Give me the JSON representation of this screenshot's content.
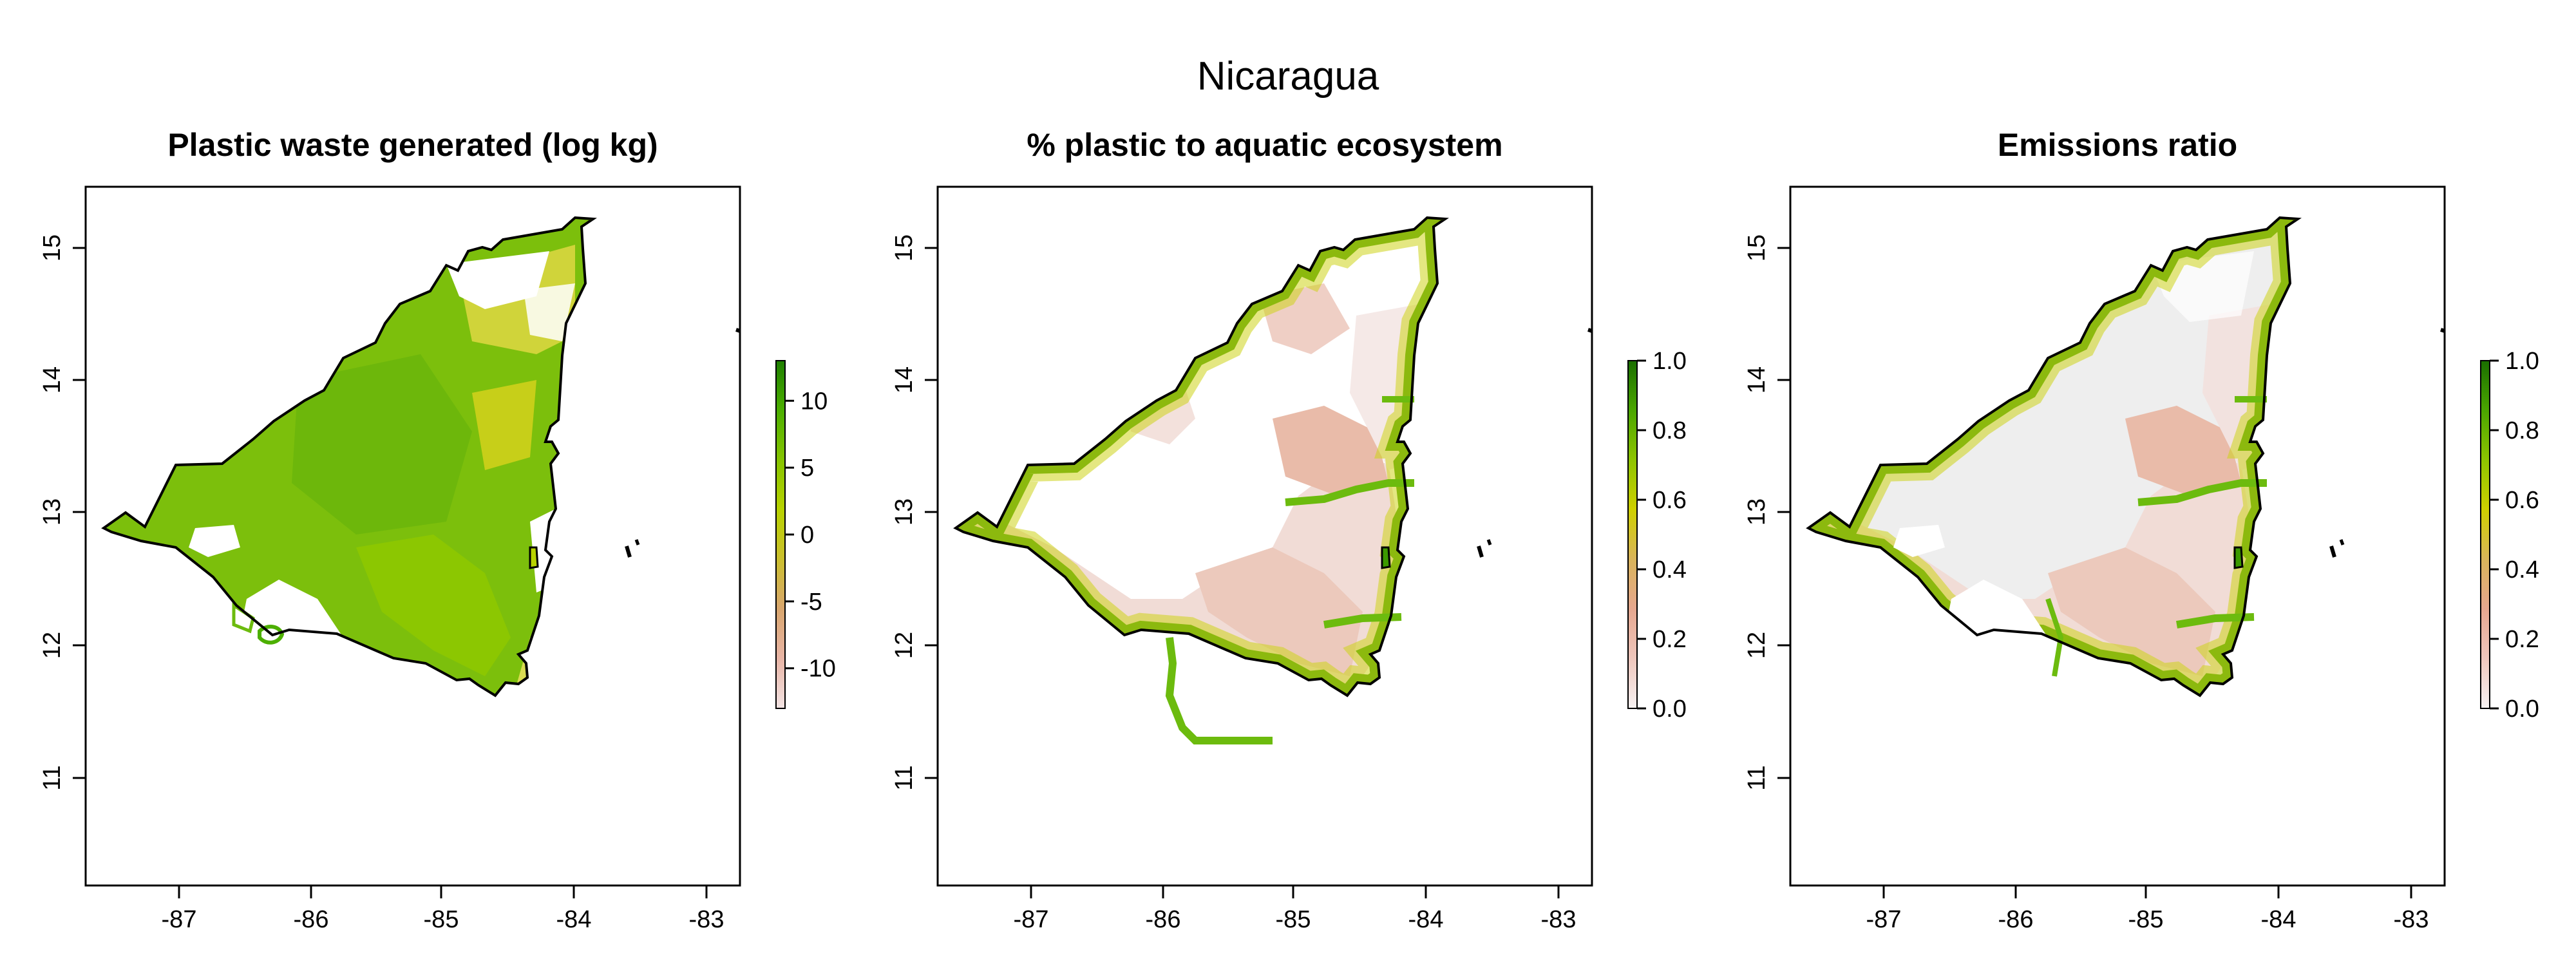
{
  "page": {
    "title": "Nicaragua"
  },
  "panels": [
    {
      "title": "Plastic waste generated (log kg)",
      "x_ticks": [
        "-87",
        "-86",
        "-85",
        "-84",
        "-83"
      ],
      "y_ticks": [
        "15",
        "14",
        "13",
        "12",
        "11"
      ],
      "legend": {
        "range": [
          -13,
          13
        ],
        "ticks": [
          {
            "value": 10,
            "label": "10"
          },
          {
            "value": 5,
            "label": "5"
          },
          {
            "value": 0,
            "label": "0"
          },
          {
            "value": -5,
            "label": "-5"
          },
          {
            "value": -10,
            "label": "-10"
          }
        ],
        "colors": [
          "#f3e4e4",
          "#e8b5a6",
          "#d9a66e",
          "#cbbf2e",
          "#b8d200",
          "#86c400",
          "#4caf00",
          "#1e7f00"
        ]
      }
    },
    {
      "title": "% plastic to aquatic ecosystem",
      "x_ticks": [
        "-87",
        "-86",
        "-85",
        "-84",
        "-83"
      ],
      "y_ticks": [
        "15",
        "14",
        "13",
        "12",
        "11"
      ],
      "legend": {
        "range": [
          0,
          1
        ],
        "ticks": [
          {
            "value": 1.0,
            "label": "1.0"
          },
          {
            "value": 0.8,
            "label": "0.8"
          },
          {
            "value": 0.6,
            "label": "0.6"
          },
          {
            "value": 0.4,
            "label": "0.4"
          },
          {
            "value": 0.2,
            "label": "0.2"
          },
          {
            "value": 0.0,
            "label": "0.0"
          }
        ],
        "colors": [
          "#f7f2f2",
          "#efc7bd",
          "#e6a78f",
          "#d9b45a",
          "#cfd000",
          "#8ec400",
          "#4ba600",
          "#1a6e00"
        ]
      }
    },
    {
      "title": "Emissions ratio",
      "x_ticks": [
        "-87",
        "-86",
        "-85",
        "-84",
        "-83"
      ],
      "y_ticks": [
        "15",
        "14",
        "13",
        "12",
        "11"
      ],
      "legend": {
        "range": [
          0,
          1
        ],
        "ticks": [
          {
            "value": 1.0,
            "label": "1.0"
          },
          {
            "value": 0.8,
            "label": "0.8"
          },
          {
            "value": 0.6,
            "label": "0.6"
          },
          {
            "value": 0.4,
            "label": "0.4"
          },
          {
            "value": 0.2,
            "label": "0.2"
          },
          {
            "value": 0.0,
            "label": "0.0"
          }
        ],
        "colors": [
          "#f7f2f2",
          "#efc7bd",
          "#e6a78f",
          "#d9b45a",
          "#cfd000",
          "#8ec400",
          "#4ba600",
          "#1a6e00"
        ]
      }
    }
  ],
  "colors": {
    "land_high": "#6cbb0e",
    "land_mid": "#86c400",
    "land_yellow": "#c8cf1e",
    "coast_green": "#3c9a00",
    "coast_yellow": "#cdd31a",
    "salmon": "#e8b3a0",
    "pale_pink": "#f1dcd6",
    "light_gray": "#eeeeee",
    "lake_white": "#ffffff",
    "border": "#000000"
  }
}
